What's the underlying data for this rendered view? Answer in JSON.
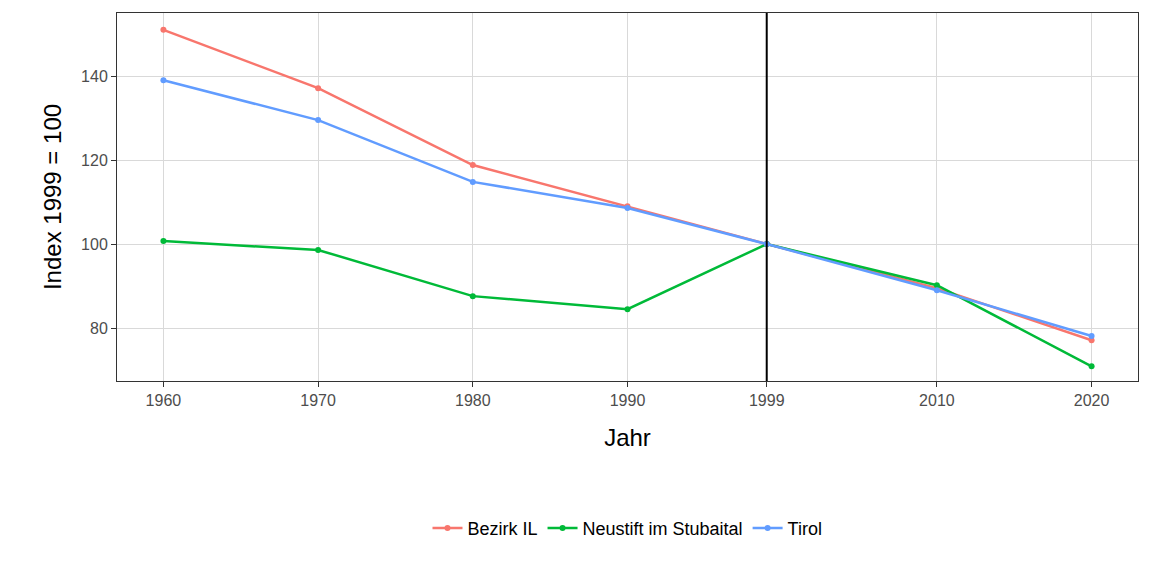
{
  "chart_data": {
    "type": "line",
    "x_label": "Jahr",
    "y_label": "Index 1999 = 100",
    "x": [
      1960,
      1970,
      1980,
      1990,
      1999,
      2010,
      2020
    ],
    "series": [
      {
        "name": "Bezirk IL",
        "color": "#F8766D",
        "values": [
          151.0,
          137.1,
          118.8,
          109.0,
          100,
          89.5,
          77.1
        ]
      },
      {
        "name": "Neustift im Stubaital",
        "color": "#00BA38",
        "values": [
          100.7,
          98.6,
          87.6,
          84.5,
          100,
          90.2,
          70.9
        ]
      },
      {
        "name": "Tirol",
        "color": "#619CFF",
        "values": [
          139.0,
          129.5,
          114.8,
          108.6,
          100,
          89.0,
          78.1
        ]
      }
    ],
    "xlim": [
      1957,
      2023
    ],
    "xticks": [
      1960,
      1970,
      1980,
      1990,
      1999,
      2010,
      2020
    ],
    "ylim": [
      67.4,
      155
    ],
    "yticks": [
      80,
      100,
      120,
      140
    ],
    "vline": 1999,
    "grid": true,
    "legend": "bottom",
    "marker": "circle"
  }
}
